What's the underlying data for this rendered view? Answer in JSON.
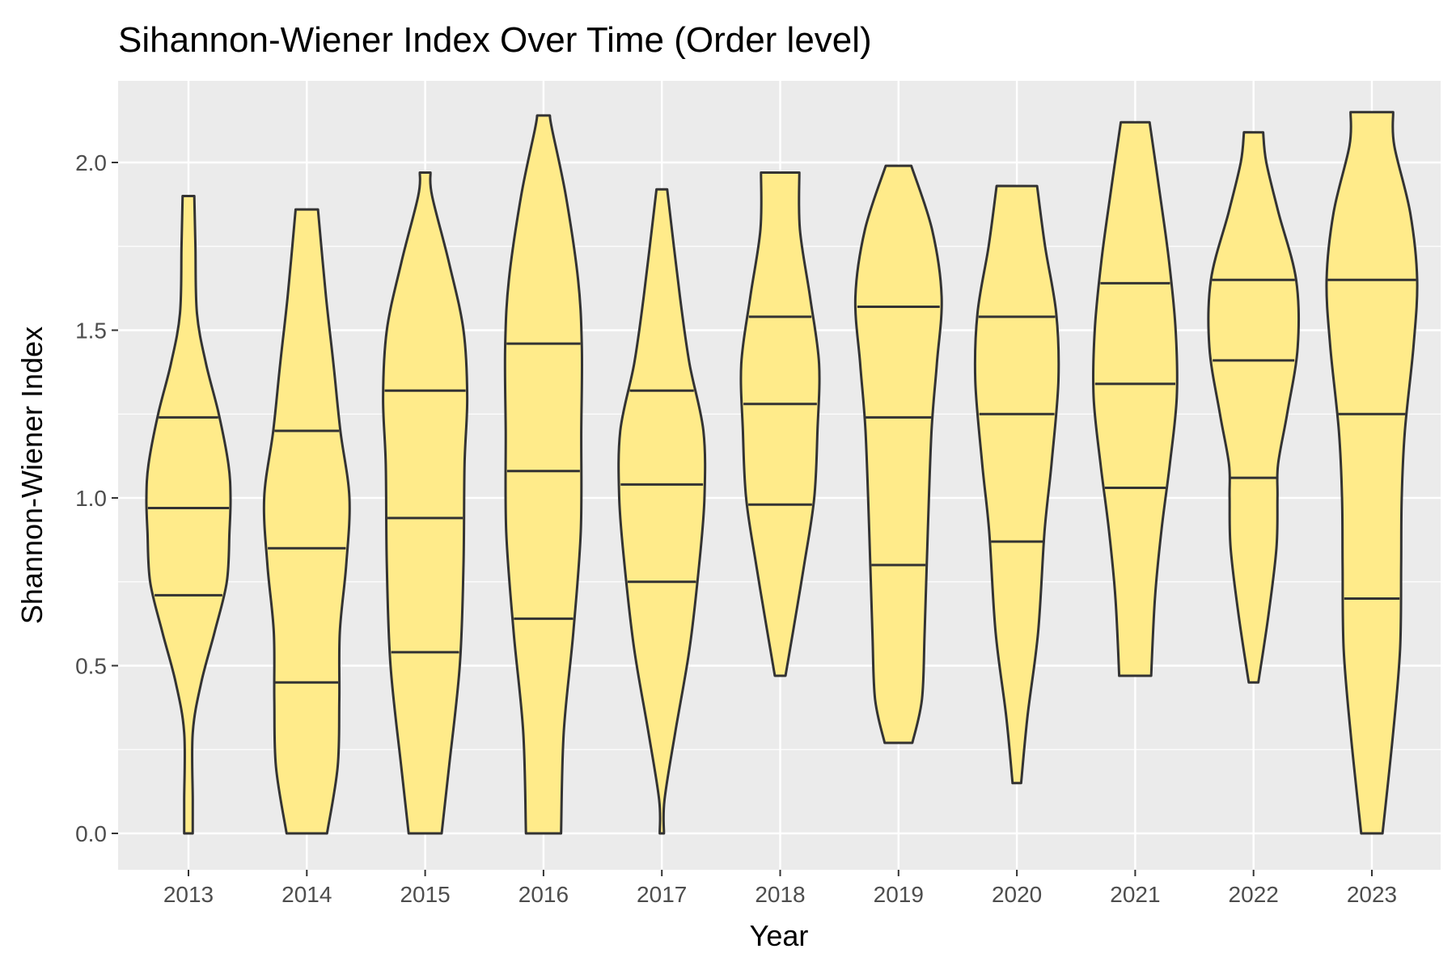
{
  "chart_data": {
    "type": "violin",
    "title": "Sihannon-Wiener Index Over Time (Order level)",
    "xlabel": "Year",
    "ylabel": "Shannon-Wiener Index",
    "ylim": [
      -0.1,
      2.25
    ],
    "yticks": [
      0.0,
      0.5,
      1.0,
      1.5,
      2.0
    ],
    "ytick_labels": [
      "0.0",
      "0.5",
      "1.0",
      "1.5",
      "2.0"
    ],
    "grid": true,
    "fill_color": "#ffeb8a",
    "outline_color": "#333333",
    "panel_color": "#ebebeb",
    "categories": [
      "2013",
      "2014",
      "2015",
      "2016",
      "2017",
      "2018",
      "2019",
      "2020",
      "2021",
      "2022",
      "2023"
    ],
    "violins": [
      {
        "year": "2013",
        "min": 0.0,
        "max": 1.9,
        "quantiles": [
          0.71,
          0.97,
          1.24
        ],
        "profile": [
          [
            0.0,
            0.08
          ],
          [
            0.1,
            0.08
          ],
          [
            0.3,
            0.08
          ],
          [
            0.45,
            0.24
          ],
          [
            0.6,
            0.49
          ],
          [
            0.75,
            0.72
          ],
          [
            0.9,
            0.77
          ],
          [
            1.0,
            0.79
          ],
          [
            1.1,
            0.75
          ],
          [
            1.25,
            0.57
          ],
          [
            1.4,
            0.33
          ],
          [
            1.55,
            0.16
          ],
          [
            1.75,
            0.13
          ],
          [
            1.9,
            0.11
          ]
        ]
      },
      {
        "year": "2014",
        "min": 0.0,
        "max": 1.86,
        "quantiles": [
          0.45,
          0.85,
          1.2
        ],
        "profile": [
          [
            0.0,
            0.38
          ],
          [
            0.2,
            0.58
          ],
          [
            0.4,
            0.61
          ],
          [
            0.6,
            0.62
          ],
          [
            0.8,
            0.74
          ],
          [
            1.0,
            0.8
          ],
          [
            1.2,
            0.63
          ],
          [
            1.4,
            0.5
          ],
          [
            1.6,
            0.36
          ],
          [
            1.86,
            0.21
          ]
        ]
      },
      {
        "year": "2015",
        "min": 0.0,
        "max": 1.97,
        "quantiles": [
          0.54,
          0.94,
          1.32
        ],
        "profile": [
          [
            0.0,
            0.31
          ],
          [
            0.2,
            0.45
          ],
          [
            0.5,
            0.65
          ],
          [
            0.8,
            0.72
          ],
          [
            1.1,
            0.74
          ],
          [
            1.3,
            0.79
          ],
          [
            1.5,
            0.72
          ],
          [
            1.7,
            0.45
          ],
          [
            1.9,
            0.13
          ],
          [
            1.97,
            0.1
          ]
        ]
      },
      {
        "year": "2016",
        "min": 0.0,
        "max": 2.14,
        "quantiles": [
          0.64,
          1.08,
          1.46
        ],
        "profile": [
          [
            0.0,
            0.33
          ],
          [
            0.3,
            0.38
          ],
          [
            0.6,
            0.56
          ],
          [
            0.9,
            0.7
          ],
          [
            1.2,
            0.71
          ],
          [
            1.45,
            0.72
          ],
          [
            1.65,
            0.65
          ],
          [
            1.9,
            0.42
          ],
          [
            2.1,
            0.16
          ],
          [
            2.14,
            0.12
          ]
        ]
      },
      {
        "year": "2017",
        "min": 0.0,
        "max": 1.92,
        "quantiles": [
          0.75,
          1.04,
          1.32
        ],
        "profile": [
          [
            0.0,
            0.04
          ],
          [
            0.1,
            0.05
          ],
          [
            0.3,
            0.25
          ],
          [
            0.55,
            0.52
          ],
          [
            0.8,
            0.7
          ],
          [
            1.0,
            0.8
          ],
          [
            1.2,
            0.78
          ],
          [
            1.4,
            0.52
          ],
          [
            1.6,
            0.34
          ],
          [
            1.92,
            0.1
          ]
        ]
      },
      {
        "year": "2018",
        "min": 0.47,
        "max": 1.97,
        "quantiles": [
          0.98,
          1.28,
          1.54
        ],
        "profile": [
          [
            0.47,
            0.1
          ],
          [
            0.6,
            0.24
          ],
          [
            0.8,
            0.45
          ],
          [
            1.0,
            0.64
          ],
          [
            1.2,
            0.7
          ],
          [
            1.4,
            0.73
          ],
          [
            1.6,
            0.56
          ],
          [
            1.8,
            0.37
          ],
          [
            1.97,
            0.36
          ]
        ]
      },
      {
        "year": "2019",
        "min": 0.27,
        "max": 1.99,
        "quantiles": [
          0.8,
          1.24,
          1.57
        ],
        "profile": [
          [
            0.27,
            0.26
          ],
          [
            0.4,
            0.44
          ],
          [
            0.6,
            0.49
          ],
          [
            0.9,
            0.55
          ],
          [
            1.2,
            0.62
          ],
          [
            1.4,
            0.72
          ],
          [
            1.6,
            0.81
          ],
          [
            1.8,
            0.63
          ],
          [
            1.99,
            0.24
          ]
        ]
      },
      {
        "year": "2020",
        "min": 0.15,
        "max": 1.93,
        "quantiles": [
          0.87,
          1.25,
          1.54
        ],
        "profile": [
          [
            0.15,
            0.08
          ],
          [
            0.35,
            0.2
          ],
          [
            0.6,
            0.4
          ],
          [
            0.9,
            0.52
          ],
          [
            1.1,
            0.65
          ],
          [
            1.35,
            0.78
          ],
          [
            1.55,
            0.74
          ],
          [
            1.75,
            0.53
          ],
          [
            1.93,
            0.38
          ]
        ]
      },
      {
        "year": "2021",
        "min": 0.47,
        "max": 2.12,
        "quantiles": [
          1.03,
          1.34,
          1.64
        ],
        "profile": [
          [
            0.47,
            0.3
          ],
          [
            0.7,
            0.37
          ],
          [
            0.9,
            0.49
          ],
          [
            1.1,
            0.65
          ],
          [
            1.3,
            0.78
          ],
          [
            1.5,
            0.76
          ],
          [
            1.7,
            0.64
          ],
          [
            1.9,
            0.47
          ],
          [
            2.12,
            0.27
          ]
        ]
      },
      {
        "year": "2022",
        "min": 0.45,
        "max": 2.09,
        "quantiles": [
          1.06,
          1.41,
          1.65
        ],
        "profile": [
          [
            0.45,
            0.09
          ],
          [
            0.65,
            0.28
          ],
          [
            0.85,
            0.43
          ],
          [
            1.0,
            0.45
          ],
          [
            1.1,
            0.46
          ],
          [
            1.25,
            0.63
          ],
          [
            1.45,
            0.83
          ],
          [
            1.65,
            0.8
          ],
          [
            1.85,
            0.47
          ],
          [
            2.0,
            0.24
          ],
          [
            2.09,
            0.18
          ]
        ]
      },
      {
        "year": "2023",
        "min": 0.0,
        "max": 2.15,
        "quantiles": [
          0.7,
          1.25,
          1.65
        ],
        "profile": [
          [
            0.0,
            0.2
          ],
          [
            0.3,
            0.4
          ],
          [
            0.55,
            0.53
          ],
          [
            0.8,
            0.55
          ],
          [
            1.0,
            0.56
          ],
          [
            1.2,
            0.62
          ],
          [
            1.45,
            0.78
          ],
          [
            1.65,
            0.85
          ],
          [
            1.85,
            0.72
          ],
          [
            2.05,
            0.42
          ],
          [
            2.15,
            0.4
          ]
        ]
      }
    ]
  }
}
